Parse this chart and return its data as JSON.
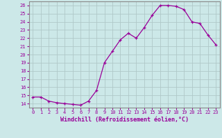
{
  "x": [
    0,
    1,
    2,
    3,
    4,
    5,
    6,
    7,
    8,
    9,
    10,
    11,
    12,
    13,
    14,
    15,
    16,
    17,
    18,
    19,
    20,
    21,
    22,
    23
  ],
  "y": [
    14.8,
    14.8,
    14.3,
    14.1,
    14.0,
    13.9,
    13.8,
    14.3,
    15.6,
    19.0,
    20.4,
    21.8,
    22.6,
    22.0,
    23.3,
    24.8,
    26.0,
    26.0,
    25.9,
    25.5,
    24.0,
    23.8,
    22.4,
    21.2
  ],
  "line_color": "#990099",
  "marker": "+",
  "marker_size": 3.5,
  "marker_linewidth": 0.9,
  "line_width": 0.9,
  "xlabel": "Windchill (Refroidissement éolien,°C)",
  "xlabel_fontsize": 6.0,
  "ylim": [
    13.5,
    26.5
  ],
  "xlim": [
    -0.5,
    23.5
  ],
  "yticks": [
    14,
    15,
    16,
    17,
    18,
    19,
    20,
    21,
    22,
    23,
    24,
    25,
    26
  ],
  "xticks": [
    0,
    1,
    2,
    3,
    4,
    5,
    6,
    7,
    8,
    9,
    10,
    11,
    12,
    13,
    14,
    15,
    16,
    17,
    18,
    19,
    20,
    21,
    22,
    23
  ],
  "xtick_labels": [
    "0",
    "1",
    "2",
    "3",
    "4",
    "5",
    "6",
    "7",
    "8",
    "9",
    "10",
    "11",
    "12",
    "13",
    "14",
    "15",
    "16",
    "17",
    "18",
    "19",
    "20",
    "21",
    "22",
    "23"
  ],
  "background_color": "#cce8e8",
  "grid_color": "#b0c8c8",
  "tick_color": "#990099",
  "label_color": "#990099",
  "border_color": "#888888",
  "tick_fontsize": 5.0
}
